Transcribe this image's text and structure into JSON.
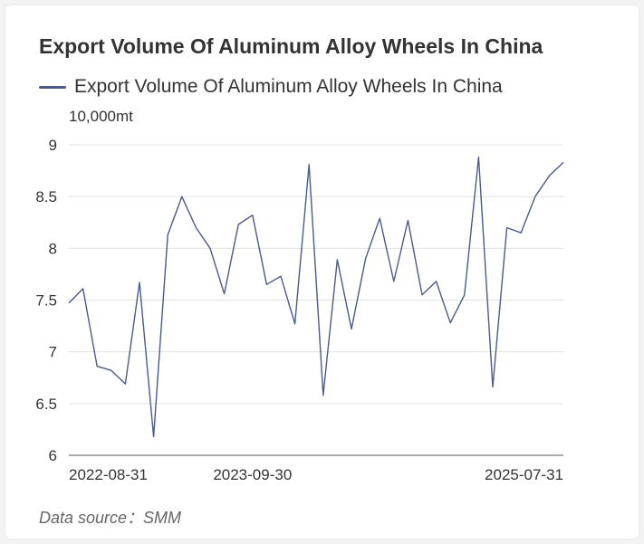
{
  "page": {
    "title": "Export Volume Of Aluminum Alloy Wheels In China",
    "source_label": "Data source：SMM"
  },
  "chart_data": {
    "type": "line",
    "title": "Export Volume Of Aluminum Alloy Wheels In China",
    "unit": "10,000mt",
    "xlabel": "",
    "ylabel": "",
    "ylim": [
      6,
      9
    ],
    "y_ticks": [
      6,
      6.5,
      7,
      7.5,
      8,
      8.5,
      9
    ],
    "x_tick_labels": [
      "2022-08-31",
      "2023-09-30",
      "2025-07-31"
    ],
    "x": [
      "2022-08-31",
      "2022-09-30",
      "2022-10-31",
      "2022-11-30",
      "2022-12-31",
      "2023-01-31",
      "2023-02-28",
      "2023-03-31",
      "2023-04-30",
      "2023-05-31",
      "2023-06-30",
      "2023-07-31",
      "2023-08-31",
      "2023-09-30",
      "2023-10-31",
      "2023-11-30",
      "2023-12-31",
      "2024-01-31",
      "2024-02-29",
      "2024-03-31",
      "2024-04-30",
      "2024-05-31",
      "2024-06-30",
      "2024-07-31",
      "2024-08-31",
      "2024-09-30",
      "2024-10-31",
      "2024-11-30",
      "2024-12-31",
      "2025-01-31",
      "2025-02-28",
      "2025-03-31",
      "2025-04-30",
      "2025-05-31",
      "2025-06-30",
      "2025-07-31"
    ],
    "series": [
      {
        "name": "Export Volume Of Aluminum Alloy Wheels In China",
        "color": "#4a5a8c",
        "values": [
          7.47,
          7.61,
          6.86,
          6.82,
          6.69,
          7.67,
          6.18,
          8.13,
          8.5,
          8.2,
          8.0,
          7.56,
          8.23,
          8.32,
          7.65,
          7.73,
          7.27,
          8.81,
          6.58,
          7.89,
          7.22,
          7.9,
          8.29,
          7.68,
          8.27,
          7.55,
          7.68,
          7.28,
          7.55,
          8.88,
          6.66,
          8.2,
          8.15,
          8.5,
          8.7,
          8.83
        ]
      }
    ],
    "grid": true,
    "legend_position": "top-left"
  }
}
